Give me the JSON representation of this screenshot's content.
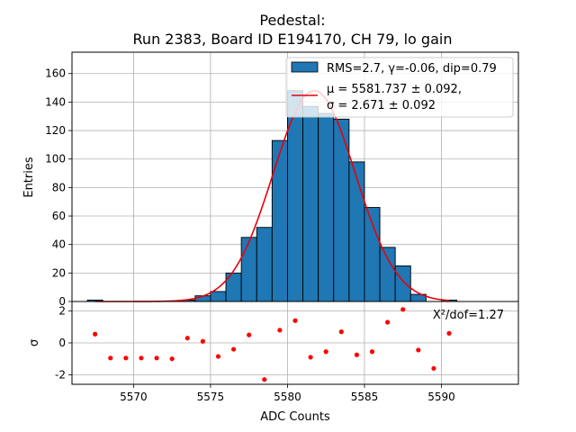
{
  "chart_data": {
    "type": "bar",
    "title_line1": "Pedestal:",
    "title_line2": "Run 2383, Board ID E194170, CH 79, lo gain",
    "xlabel": "ADC Counts",
    "ylabel": "Entries",
    "residual_ylabel": "σ",
    "xlim": [
      5566,
      5595
    ],
    "ylim": [
      0,
      175
    ],
    "residual_ylim": [
      -2.6,
      2.6
    ],
    "xticks": [
      5570,
      5575,
      5580,
      5585,
      5590
    ],
    "yticks": [
      0,
      20,
      40,
      60,
      80,
      100,
      120,
      140,
      160
    ],
    "residual_yticks": [
      -2,
      0,
      2
    ],
    "grid": true,
    "legend_placement": "top-right",
    "histogram": {
      "name": "RMS=2.7, γ=-0.06, dip=0.79",
      "color": "#1f77b4",
      "bin_left_edges": [
        5567,
        5568,
        5569,
        5570,
        5571,
        5572,
        5573,
        5574,
        5575,
        5576,
        5577,
        5578,
        5579,
        5580,
        5581,
        5582,
        5583,
        5584,
        5585,
        5586,
        5587,
        5588,
        5589,
        5590
      ],
      "values": [
        1,
        0,
        0,
        0,
        0,
        0,
        1,
        4,
        7,
        20,
        45,
        52,
        113,
        148,
        137,
        132,
        128,
        98,
        66,
        38,
        25,
        5,
        0,
        1
      ]
    },
    "fit": {
      "label_line1": "μ = 5581.737 ± 0.092,",
      "label_line2": "σ = 2.671 ± 0.092",
      "color": "#e8000b",
      "mu": 5581.737,
      "sigma": 2.671,
      "amplitude": 148,
      "x_range": [
        5567.5,
        5590.5
      ]
    },
    "residuals": {
      "color": "#ff0000",
      "x": [
        5567.5,
        5568.5,
        5569.5,
        5570.5,
        5571.5,
        5572.5,
        5573.5,
        5574.5,
        5575.5,
        5576.5,
        5577.5,
        5578.5,
        5579.5,
        5580.5,
        5581.5,
        5582.5,
        5583.5,
        5584.5,
        5585.5,
        5586.5,
        5587.5,
        5588.5,
        5589.5,
        5590.5
      ],
      "y": [
        0.55,
        -0.95,
        -0.95,
        -0.95,
        -0.95,
        -1.0,
        0.3,
        0.1,
        -0.85,
        -0.4,
        0.5,
        -2.3,
        0.8,
        1.4,
        -0.9,
        -0.55,
        0.7,
        -0.75,
        -0.55,
        1.3,
        2.1,
        -0.45,
        -1.6,
        0.6
      ]
    },
    "annotation": "X²/dof=1.27"
  }
}
